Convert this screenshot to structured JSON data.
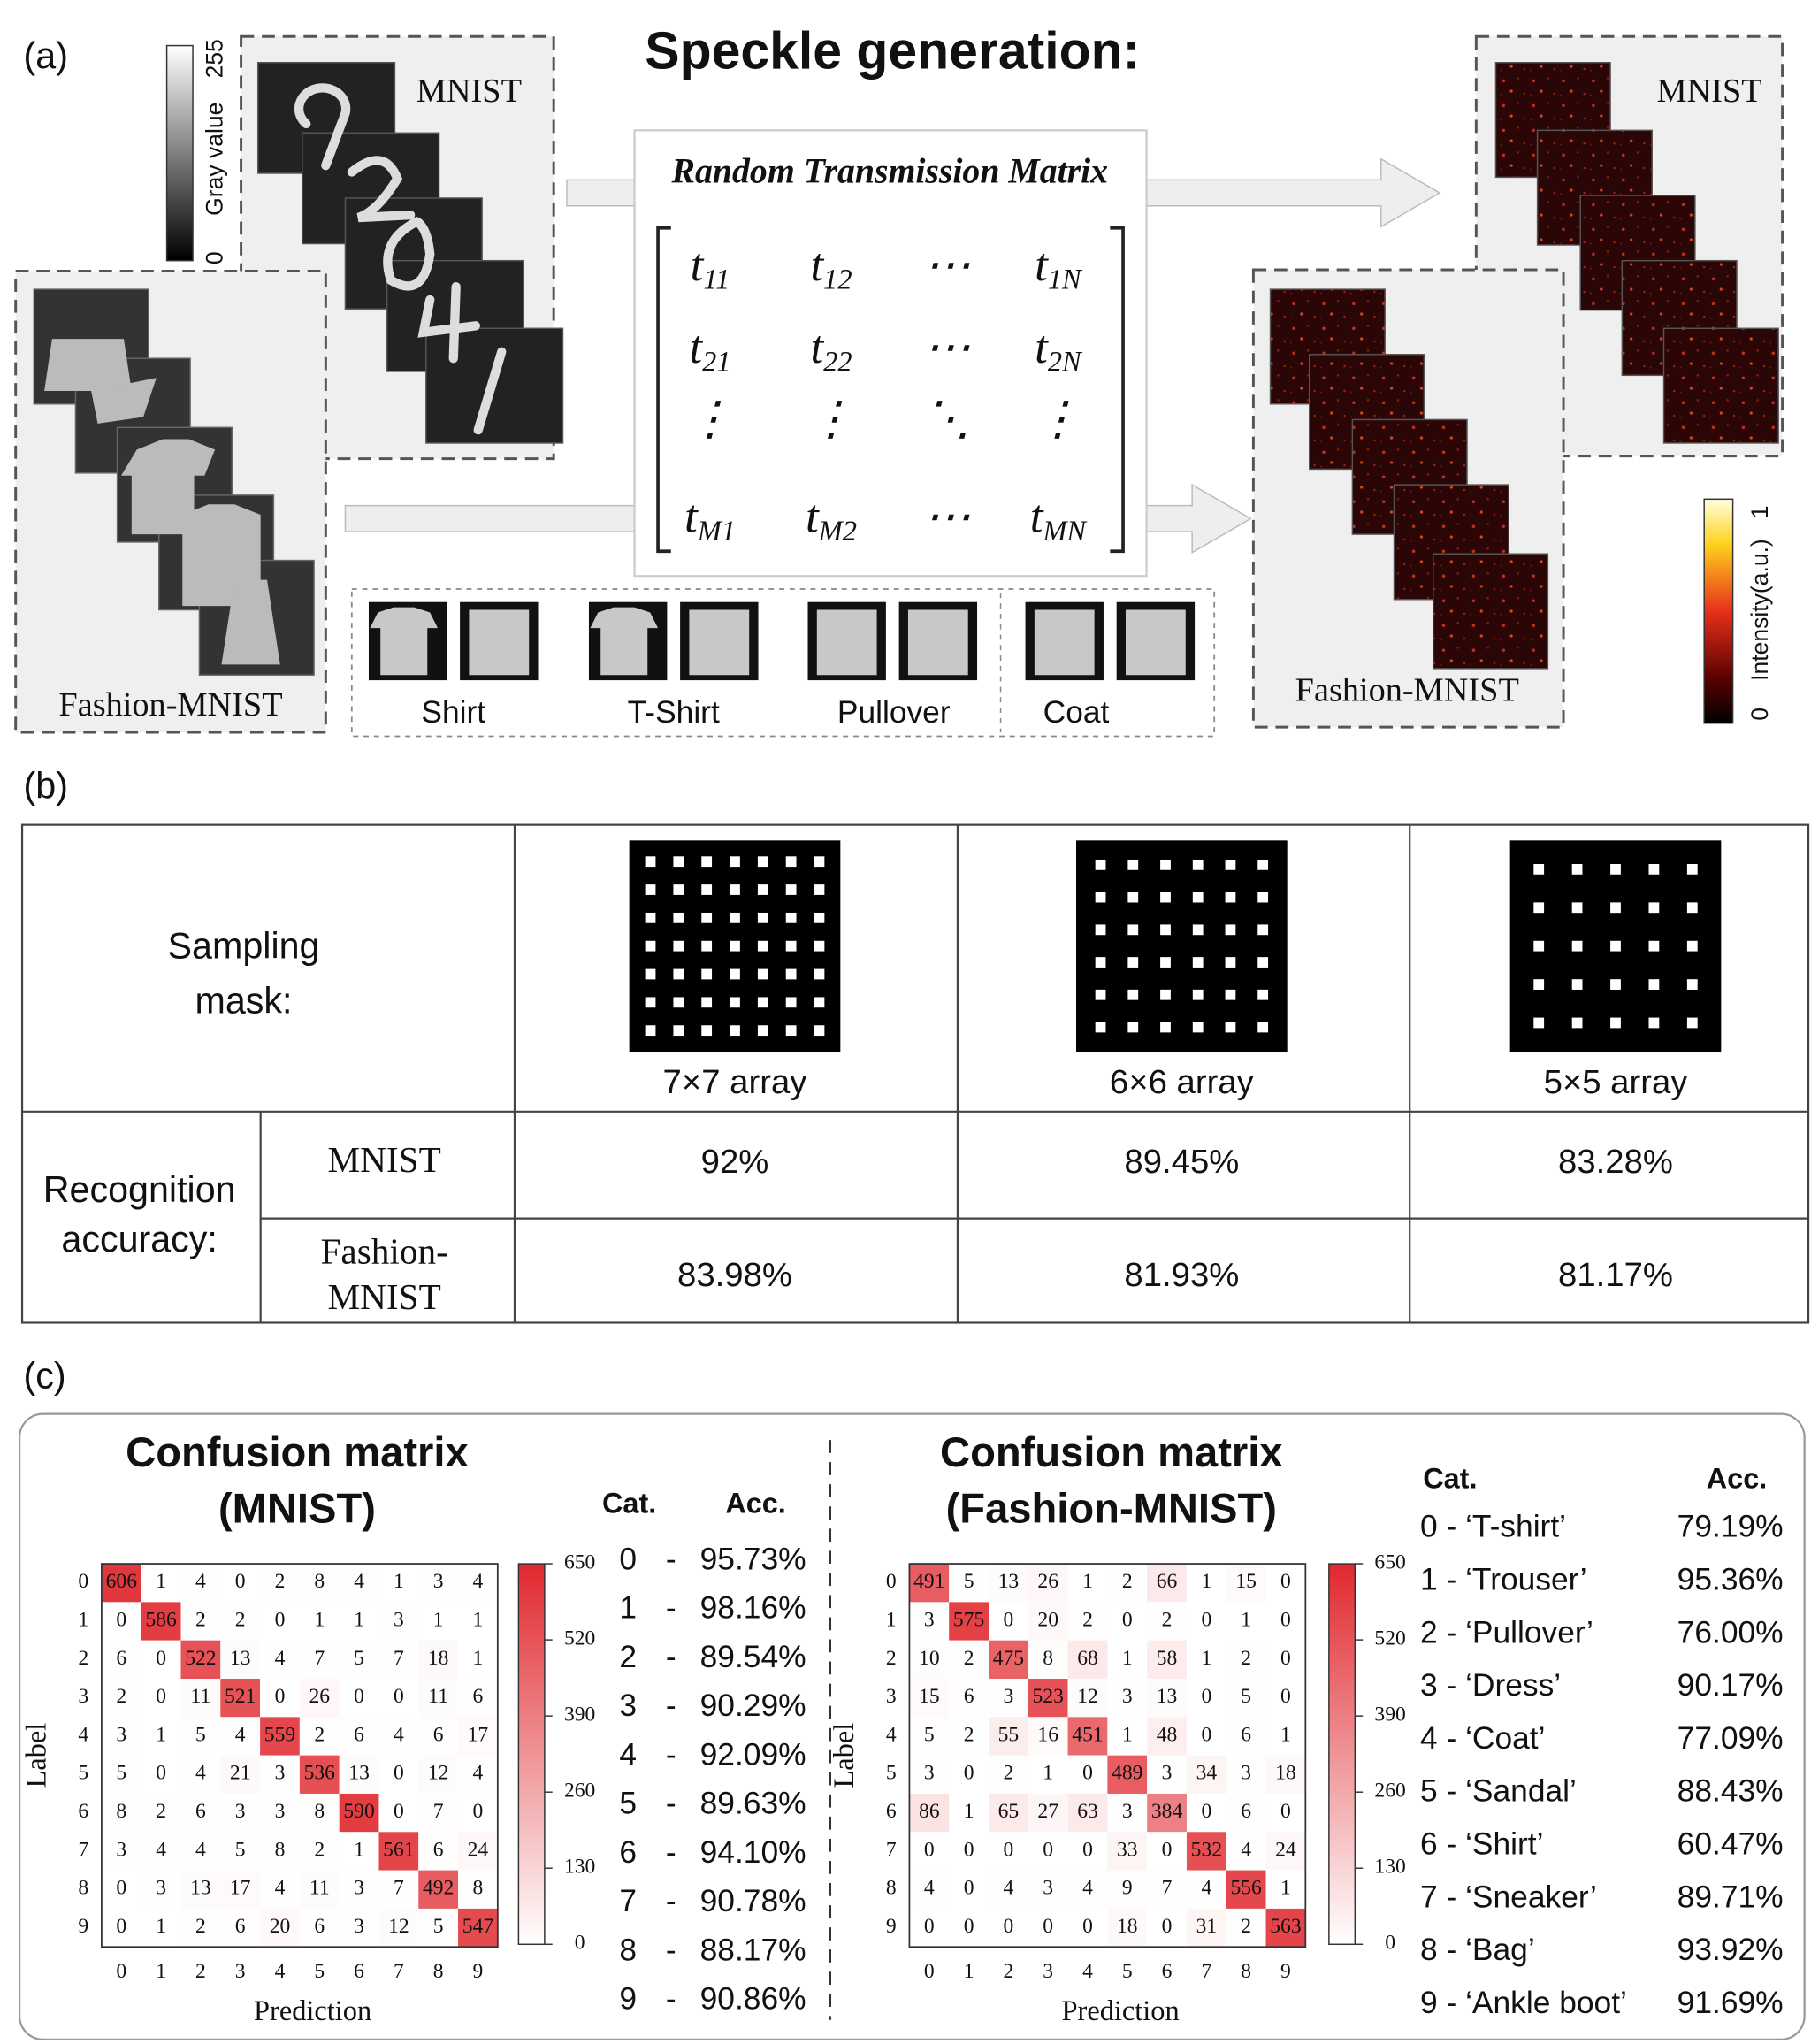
{
  "panel_a": {
    "label": "(a)",
    "title": "Speckle generation:",
    "gray_colorbar": {
      "max": "255",
      "label": "Gray value",
      "min": "0"
    },
    "mnist_label": "MNIST",
    "fashion_label": "Fashion-MNIST",
    "matrix": {
      "title": "Random Transmission Matrix",
      "rows": [
        [
          {
            "t": "t",
            "sub": "11"
          },
          {
            "t": "t",
            "sub": "12"
          },
          {
            "t": "⋯"
          },
          {
            "t": "t",
            "sub": "1N"
          }
        ],
        [
          {
            "t": "t",
            "sub": "21"
          },
          {
            "t": "t",
            "sub": "22"
          },
          {
            "t": "⋯"
          },
          {
            "t": "t",
            "sub": "2N"
          }
        ],
        [
          {
            "t": "⋮"
          },
          {
            "t": "⋮"
          },
          {
            "t": "⋱"
          },
          {
            "t": "⋮"
          }
        ],
        [
          {
            "t": "t",
            "sub": "M1"
          },
          {
            "t": "t",
            "sub": "M2"
          },
          {
            "t": "⋯"
          },
          {
            "t": "t",
            "sub": "MN"
          }
        ]
      ]
    },
    "classes": [
      "Shirt",
      "T-Shirt",
      "Pullover",
      "Coat"
    ],
    "speckle_mnist_label": "MNIST",
    "speckle_fashion_label": "Fashion-MNIST",
    "intensity_colorbar": {
      "max": "1",
      "label": "Intensity(a.u.)",
      "min": "0"
    }
  },
  "panel_b": {
    "label": "(b)",
    "mask_header": [
      "Sampling",
      "mask:"
    ],
    "columns": [
      {
        "grid": 7,
        "label": "7×7 array"
      },
      {
        "grid": 6,
        "label": "6×6 array"
      },
      {
        "grid": 5,
        "label": "5×5 array"
      }
    ],
    "row_header": [
      "Recognition",
      "accuracy:"
    ],
    "rows": [
      {
        "name": [
          "MNIST"
        ],
        "values": [
          "92%",
          "89.45%",
          "83.28%"
        ]
      },
      {
        "name": [
          "Fashion-",
          "MNIST"
        ],
        "values": [
          "83.98%",
          "81.93%",
          "81.17%"
        ]
      }
    ]
  },
  "panel_c": {
    "label": "(c)",
    "matrices": [
      {
        "title": [
          "Confusion matrix",
          "(MNIST)"
        ],
        "ylabel": "Label",
        "xlabel": "Prediction",
        "tick_labels": [
          0,
          1,
          2,
          3,
          4,
          5,
          6,
          7,
          8,
          9
        ],
        "colorbar": {
          "lim": [
            0,
            650
          ],
          "ticks": [
            0,
            130,
            260,
            390,
            520,
            650
          ],
          "colors": [
            "#ffffff",
            "#e0282e"
          ]
        },
        "values": [
          [
            606,
            1,
            4,
            0,
            2,
            8,
            4,
            1,
            3,
            4
          ],
          [
            0,
            586,
            2,
            2,
            0,
            1,
            1,
            3,
            1,
            1
          ],
          [
            6,
            0,
            522,
            13,
            4,
            7,
            5,
            7,
            18,
            1
          ],
          [
            2,
            0,
            11,
            521,
            0,
            26,
            0,
            0,
            11,
            6
          ],
          [
            3,
            1,
            5,
            4,
            559,
            2,
            6,
            4,
            6,
            17
          ],
          [
            5,
            0,
            4,
            21,
            3,
            536,
            13,
            0,
            12,
            4
          ],
          [
            8,
            2,
            6,
            3,
            3,
            8,
            590,
            0,
            7,
            0
          ],
          [
            3,
            4,
            4,
            5,
            8,
            2,
            1,
            561,
            6,
            24
          ],
          [
            0,
            3,
            13,
            17,
            4,
            11,
            3,
            7,
            492,
            8
          ],
          [
            0,
            1,
            2,
            6,
            20,
            6,
            3,
            12,
            5,
            547
          ]
        ],
        "cat_header": "Cat.",
        "acc_header": "Acc.",
        "separator": "-",
        "categories": [
          {
            "label": "0",
            "acc": "95.73%"
          },
          {
            "label": "1",
            "acc": "98.16%"
          },
          {
            "label": "2",
            "acc": "89.54%"
          },
          {
            "label": "3",
            "acc": "90.29%"
          },
          {
            "label": "4",
            "acc": "92.09%"
          },
          {
            "label": "5",
            "acc": "89.63%"
          },
          {
            "label": "6",
            "acc": "94.10%"
          },
          {
            "label": "7",
            "acc": "90.78%"
          },
          {
            "label": "8",
            "acc": "88.17%"
          },
          {
            "label": "9",
            "acc": "90.86%"
          }
        ]
      },
      {
        "title": [
          "Confusion matrix",
          "(Fashion-MNIST)"
        ],
        "ylabel": "Label",
        "xlabel": "Prediction",
        "tick_labels": [
          0,
          1,
          2,
          3,
          4,
          5,
          6,
          7,
          8,
          9
        ],
        "colorbar": {
          "lim": [
            0,
            650
          ],
          "ticks": [
            0,
            130,
            260,
            390,
            520,
            650
          ],
          "colors": [
            "#ffffff",
            "#e0282e"
          ]
        },
        "values": [
          [
            491,
            5,
            13,
            26,
            1,
            2,
            66,
            1,
            15,
            0
          ],
          [
            3,
            575,
            0,
            20,
            2,
            0,
            2,
            0,
            1,
            0
          ],
          [
            10,
            2,
            475,
            8,
            68,
            1,
            58,
            1,
            2,
            0
          ],
          [
            15,
            6,
            3,
            523,
            12,
            3,
            13,
            0,
            5,
            0
          ],
          [
            5,
            2,
            55,
            16,
            451,
            1,
            48,
            0,
            6,
            1
          ],
          [
            3,
            0,
            2,
            1,
            0,
            489,
            3,
            34,
            3,
            18
          ],
          [
            86,
            1,
            65,
            27,
            63,
            3,
            384,
            0,
            6,
            0
          ],
          [
            0,
            0,
            0,
            0,
            0,
            33,
            0,
            532,
            4,
            24
          ],
          [
            4,
            0,
            4,
            3,
            4,
            9,
            7,
            4,
            556,
            1
          ],
          [
            0,
            0,
            0,
            0,
            0,
            18,
            0,
            31,
            2,
            563
          ]
        ],
        "cat_header": "Cat.",
        "acc_header": "Acc.",
        "categories": [
          {
            "label": "0 - ‘T-shirt’",
            "acc": "79.19%"
          },
          {
            "label": "1 - ‘Trouser’",
            "acc": "95.36%"
          },
          {
            "label": "2 - ‘Pullover’",
            "acc": "76.00%"
          },
          {
            "label": "3 - ‘Dress’",
            "acc": "90.17%"
          },
          {
            "label": "4 - ‘Coat’",
            "acc": "77.09%"
          },
          {
            "label": "5 - ‘Sandal’",
            "acc": "88.43%"
          },
          {
            "label": "6 - ‘Shirt’",
            "acc": "60.47%"
          },
          {
            "label": "7 - ‘Sneaker’",
            "acc": "89.71%"
          },
          {
            "label": "8 - ‘Bag’",
            "acc": "93.92%"
          },
          {
            "label": "9 - ‘Ankle boot’",
            "acc": "91.69%"
          }
        ]
      }
    ]
  }
}
